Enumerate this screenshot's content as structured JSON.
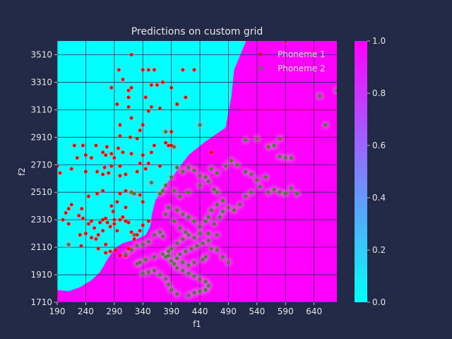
{
  "colors": {
    "background": "#212946",
    "region_phoneme1": "#00ffff",
    "region_phoneme2": "#ff00ff",
    "phoneme1_point": "#ff0000",
    "phoneme2_point": "#4f7a3a",
    "gridline": "#2a2f50",
    "text": "#e6e6e6"
  },
  "chart_data": {
    "type": "scatter",
    "title": "Predictions on custom grid",
    "xlabel": "f1",
    "ylabel": "f2",
    "xlim": [
      190,
      680
    ],
    "ylim": [
      1710,
      3610
    ],
    "xticks": [
      190,
      240,
      290,
      340,
      390,
      440,
      490,
      540,
      590,
      640
    ],
    "yticks": [
      1710,
      1910,
      2110,
      2310,
      2510,
      2710,
      2910,
      3110,
      3310,
      3510
    ],
    "grid": true,
    "legend_position": "top-right",
    "decision_boundary": [
      [
        190,
        1800
      ],
      [
        210,
        1790
      ],
      [
        230,
        1820
      ],
      [
        250,
        1870
      ],
      [
        265,
        1930
      ],
      [
        278,
        2020
      ],
      [
        290,
        2100
      ],
      [
        305,
        2140
      ],
      [
        330,
        2170
      ],
      [
        345,
        2200
      ],
      [
        353,
        2260
      ],
      [
        356,
        2350
      ],
      [
        362,
        2450
      ],
      [
        375,
        2540
      ],
      [
        395,
        2640
      ],
      [
        420,
        2780
      ],
      [
        450,
        2880
      ],
      [
        485,
        2980
      ],
      [
        495,
        3200
      ],
      [
        500,
        3400
      ],
      [
        521,
        3610
      ]
    ],
    "colorbar": {
      "range": [
        0.0,
        1.0
      ],
      "ticks": [
        0.0,
        0.2,
        0.4,
        0.6,
        0.8,
        1.0
      ],
      "tick_labels": [
        "0.0",
        "0.2",
        "0.4",
        "0.6",
        "0.8",
        "1.0"
      ]
    },
    "series": [
      {
        "name": "Phoneme 1",
        "points": [
          [
            190,
            2700
          ],
          [
            195,
            2650
          ],
          [
            220,
            2850
          ],
          [
            235,
            2850
          ],
          [
            258,
            2850
          ],
          [
            277,
            2840
          ],
          [
            297,
            2830
          ],
          [
            330,
            2900
          ],
          [
            360,
            2850
          ],
          [
            355,
            2800
          ],
          [
            270,
            2800
          ],
          [
            275,
            2780
          ],
          [
            285,
            2790
          ],
          [
            290,
            2760
          ],
          [
            305,
            2800
          ],
          [
            320,
            2790
          ],
          [
            340,
            2780
          ],
          [
            350,
            2720
          ],
          [
            335,
            2720
          ],
          [
            300,
            2700
          ],
          [
            285,
            2700
          ],
          [
            273,
            2690
          ],
          [
            250,
            2760
          ],
          [
            240,
            2780
          ],
          [
            225,
            2760
          ],
          [
            215,
            2680
          ],
          [
            240,
            2660
          ],
          [
            260,
            2660
          ],
          [
            270,
            2640
          ],
          [
            280,
            2650
          ],
          [
            300,
            2630
          ],
          [
            310,
            2640
          ],
          [
            330,
            2660
          ],
          [
            345,
            2680
          ],
          [
            370,
            2700
          ],
          [
            380,
            2870
          ],
          [
            385,
            2850
          ],
          [
            390,
            2850
          ],
          [
            298,
            3400
          ],
          [
            305,
            3330
          ],
          [
            340,
            3400
          ],
          [
            350,
            3400
          ],
          [
            320,
            3510
          ],
          [
            360,
            3400
          ],
          [
            410,
            3400
          ],
          [
            430,
            3400
          ],
          [
            285,
            3270
          ],
          [
            295,
            3150
          ],
          [
            315,
            3200
          ],
          [
            315,
            3250
          ],
          [
            320,
            3270
          ],
          [
            345,
            3200
          ],
          [
            355,
            3290
          ],
          [
            355,
            3130
          ],
          [
            365,
            3290
          ],
          [
            375,
            3310
          ],
          [
            390,
            3270
          ],
          [
            415,
            3200
          ],
          [
            400,
            3150
          ],
          [
            370,
            3120
          ],
          [
            315,
            3130
          ],
          [
            320,
            3050
          ],
          [
            340,
            3000
          ],
          [
            350,
            3100
          ],
          [
            300,
            3000
          ],
          [
            300,
            2920
          ],
          [
            318,
            2910
          ],
          [
            335,
            2960
          ],
          [
            390,
            2950
          ],
          [
            200,
            2310
          ],
          [
            205,
            2360
          ],
          [
            210,
            2390
          ],
          [
            215,
            2420
          ],
          [
            210,
            2280
          ],
          [
            228,
            2340
          ],
          [
            235,
            2320
          ],
          [
            230,
            2200
          ],
          [
            232,
            2120
          ],
          [
            250,
            2300
          ],
          [
            245,
            2280
          ],
          [
            255,
            2250
          ],
          [
            258,
            2170
          ],
          [
            262,
            2200
          ],
          [
            265,
            2290
          ],
          [
            270,
            2310
          ],
          [
            275,
            2320
          ],
          [
            278,
            2290
          ],
          [
            283,
            2260
          ],
          [
            290,
            2280
          ],
          [
            285,
            2410
          ],
          [
            288,
            2370
          ],
          [
            295,
            2440
          ],
          [
            310,
            2400
          ],
          [
            300,
            2500
          ],
          [
            310,
            2520
          ],
          [
            320,
            2510
          ],
          [
            335,
            2490
          ],
          [
            340,
            2440
          ],
          [
            300,
            2310
          ],
          [
            305,
            2330
          ],
          [
            310,
            2300
          ],
          [
            315,
            2290
          ],
          [
            320,
            2220
          ],
          [
            325,
            2170
          ],
          [
            330,
            2200
          ],
          [
            340,
            2270
          ],
          [
            350,
            2300
          ],
          [
            260,
            2500
          ],
          [
            245,
            2480
          ],
          [
            270,
            2520
          ],
          [
            233,
            2390
          ],
          [
            240,
            2210
          ],
          [
            250,
            2180
          ],
          [
            262,
            2100
          ],
          [
            275,
            2070
          ],
          [
            283,
            2080
          ],
          [
            300,
            2050
          ],
          [
            315,
            2100
          ],
          [
            325,
            2200
          ],
          [
            335,
            2230
          ],
          [
            295,
            2230
          ],
          [
            290,
            2310
          ],
          [
            270,
            2230
          ],
          [
            275,
            2130
          ],
          [
            292,
            2090
          ],
          [
            310,
            2050
          ],
          [
            460,
            2800
          ],
          [
            590,
            3610
          ]
        ]
      },
      {
        "name": "Phoneme 2",
        "points": [
          [
            210,
            2130
          ],
          [
            380,
            2950
          ],
          [
            395,
            2840
          ],
          [
            440,
            3000
          ],
          [
            520,
            2890
          ],
          [
            540,
            2900
          ],
          [
            560,
            2840
          ],
          [
            570,
            2850
          ],
          [
            580,
            2900
          ],
          [
            590,
            2760
          ],
          [
            580,
            2770
          ],
          [
            600,
            2760
          ],
          [
            650,
            3210
          ],
          [
            660,
            3000
          ],
          [
            680,
            3250
          ],
          [
            520,
            2660
          ],
          [
            530,
            2640
          ],
          [
            540,
            2600
          ],
          [
            545,
            2550
          ],
          [
            555,
            2620
          ],
          [
            560,
            2510
          ],
          [
            570,
            2530
          ],
          [
            580,
            2510
          ],
          [
            590,
            2500
          ],
          [
            600,
            2540
          ],
          [
            610,
            2500
          ],
          [
            505,
            2710
          ],
          [
            495,
            2740
          ],
          [
            485,
            2700
          ],
          [
            470,
            2650
          ],
          [
            460,
            2680
          ],
          [
            450,
            2620
          ],
          [
            440,
            2630
          ],
          [
            430,
            2670
          ],
          [
            420,
            2690
          ],
          [
            410,
            2660
          ],
          [
            400,
            2690
          ],
          [
            390,
            2620
          ],
          [
            380,
            2560
          ],
          [
            375,
            2520
          ],
          [
            370,
            2500
          ],
          [
            355,
            2580
          ],
          [
            325,
            2500
          ],
          [
            320,
            2510
          ],
          [
            395,
            2520
          ],
          [
            405,
            2480
          ],
          [
            420,
            2510
          ],
          [
            440,
            2560
          ],
          [
            455,
            2590
          ],
          [
            465,
            2530
          ],
          [
            470,
            2510
          ],
          [
            480,
            2450
          ],
          [
            490,
            2400
          ],
          [
            500,
            2380
          ],
          [
            510,
            2420
          ],
          [
            520,
            2480
          ],
          [
            530,
            2510
          ],
          [
            470,
            2420
          ],
          [
            460,
            2380
          ],
          [
            455,
            2330
          ],
          [
            450,
            2300
          ],
          [
            440,
            2260
          ],
          [
            430,
            2300
          ],
          [
            420,
            2330
          ],
          [
            410,
            2350
          ],
          [
            400,
            2380
          ],
          [
            385,
            2400
          ],
          [
            380,
            2350
          ],
          [
            395,
            2300
          ],
          [
            405,
            2250
          ],
          [
            415,
            2220
          ],
          [
            420,
            2200
          ],
          [
            410,
            2170
          ],
          [
            400,
            2140
          ],
          [
            390,
            2100
          ],
          [
            385,
            2080
          ],
          [
            375,
            2190
          ],
          [
            370,
            2220
          ],
          [
            360,
            2200
          ],
          [
            350,
            2150
          ],
          [
            340,
            2130
          ],
          [
            330,
            2120
          ],
          [
            320,
            2090
          ],
          [
            310,
            2060
          ],
          [
            325,
            2200
          ],
          [
            380,
            2040
          ],
          [
            390,
            2010
          ],
          [
            395,
            1990
          ],
          [
            400,
            1960
          ],
          [
            410,
            1940
          ],
          [
            420,
            1920
          ],
          [
            430,
            1900
          ],
          [
            440,
            1880
          ],
          [
            450,
            1860
          ],
          [
            455,
            1830
          ],
          [
            450,
            1800
          ],
          [
            440,
            1790
          ],
          [
            430,
            1780
          ],
          [
            420,
            1760
          ],
          [
            400,
            1770
          ],
          [
            390,
            1800
          ],
          [
            385,
            1840
          ],
          [
            380,
            1880
          ],
          [
            370,
            1910
          ],
          [
            360,
            1940
          ],
          [
            350,
            1930
          ],
          [
            340,
            1920
          ],
          [
            330,
            1990
          ],
          [
            335,
            2000
          ],
          [
            345,
            2020
          ],
          [
            360,
            2040
          ],
          [
            375,
            2060
          ],
          [
            385,
            2050
          ],
          [
            405,
            2060
          ],
          [
            415,
            2080
          ],
          [
            425,
            2100
          ],
          [
            435,
            2120
          ],
          [
            445,
            2140
          ],
          [
            455,
            2160
          ],
          [
            460,
            2100
          ],
          [
            470,
            2090
          ],
          [
            480,
            2040
          ],
          [
            490,
            2000
          ],
          [
            450,
            2040
          ],
          [
            445,
            2020
          ],
          [
            430,
            2000
          ],
          [
            420,
            1980
          ],
          [
            410,
            2000
          ],
          [
            400,
            2030
          ],
          [
            465,
            2280
          ],
          [
            475,
            2330
          ],
          [
            480,
            2370
          ],
          [
            470,
            2200
          ],
          [
            455,
            2210
          ],
          [
            440,
            2210
          ],
          [
            430,
            2180
          ]
        ]
      }
    ]
  }
}
